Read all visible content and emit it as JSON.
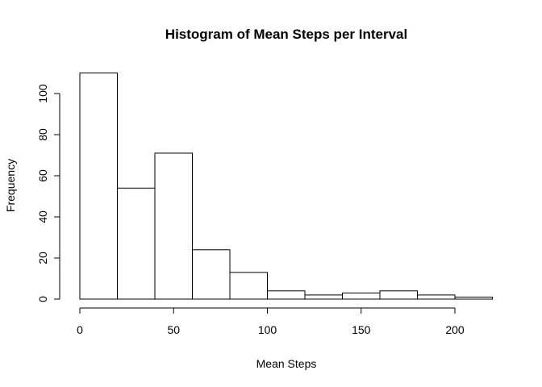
{
  "chart_data": {
    "type": "bar",
    "title": "Histogram of Mean Steps per Interval",
    "xlabel": "Mean Steps",
    "ylabel": "Frequency",
    "bins": [
      {
        "from": 0,
        "to": 20,
        "count": 110
      },
      {
        "from": 20,
        "to": 40,
        "count": 54
      },
      {
        "from": 40,
        "to": 60,
        "count": 71
      },
      {
        "from": 60,
        "to": 80,
        "count": 24
      },
      {
        "from": 80,
        "to": 100,
        "count": 13
      },
      {
        "from": 100,
        "to": 120,
        "count": 4
      },
      {
        "from": 120,
        "to": 140,
        "count": 2
      },
      {
        "from": 140,
        "to": 160,
        "count": 3
      },
      {
        "from": 160,
        "to": 180,
        "count": 4
      },
      {
        "from": 180,
        "to": 200,
        "count": 2
      },
      {
        "from": 200,
        "to": 220,
        "count": 1
      }
    ],
    "xlim": [
      0,
      220
    ],
    "ylim": [
      0,
      110
    ],
    "xticks": [
      0,
      50,
      100,
      150,
      200
    ],
    "yticks": [
      0,
      20,
      40,
      60,
      80,
      100
    ],
    "grid": false,
    "legend": "none"
  }
}
